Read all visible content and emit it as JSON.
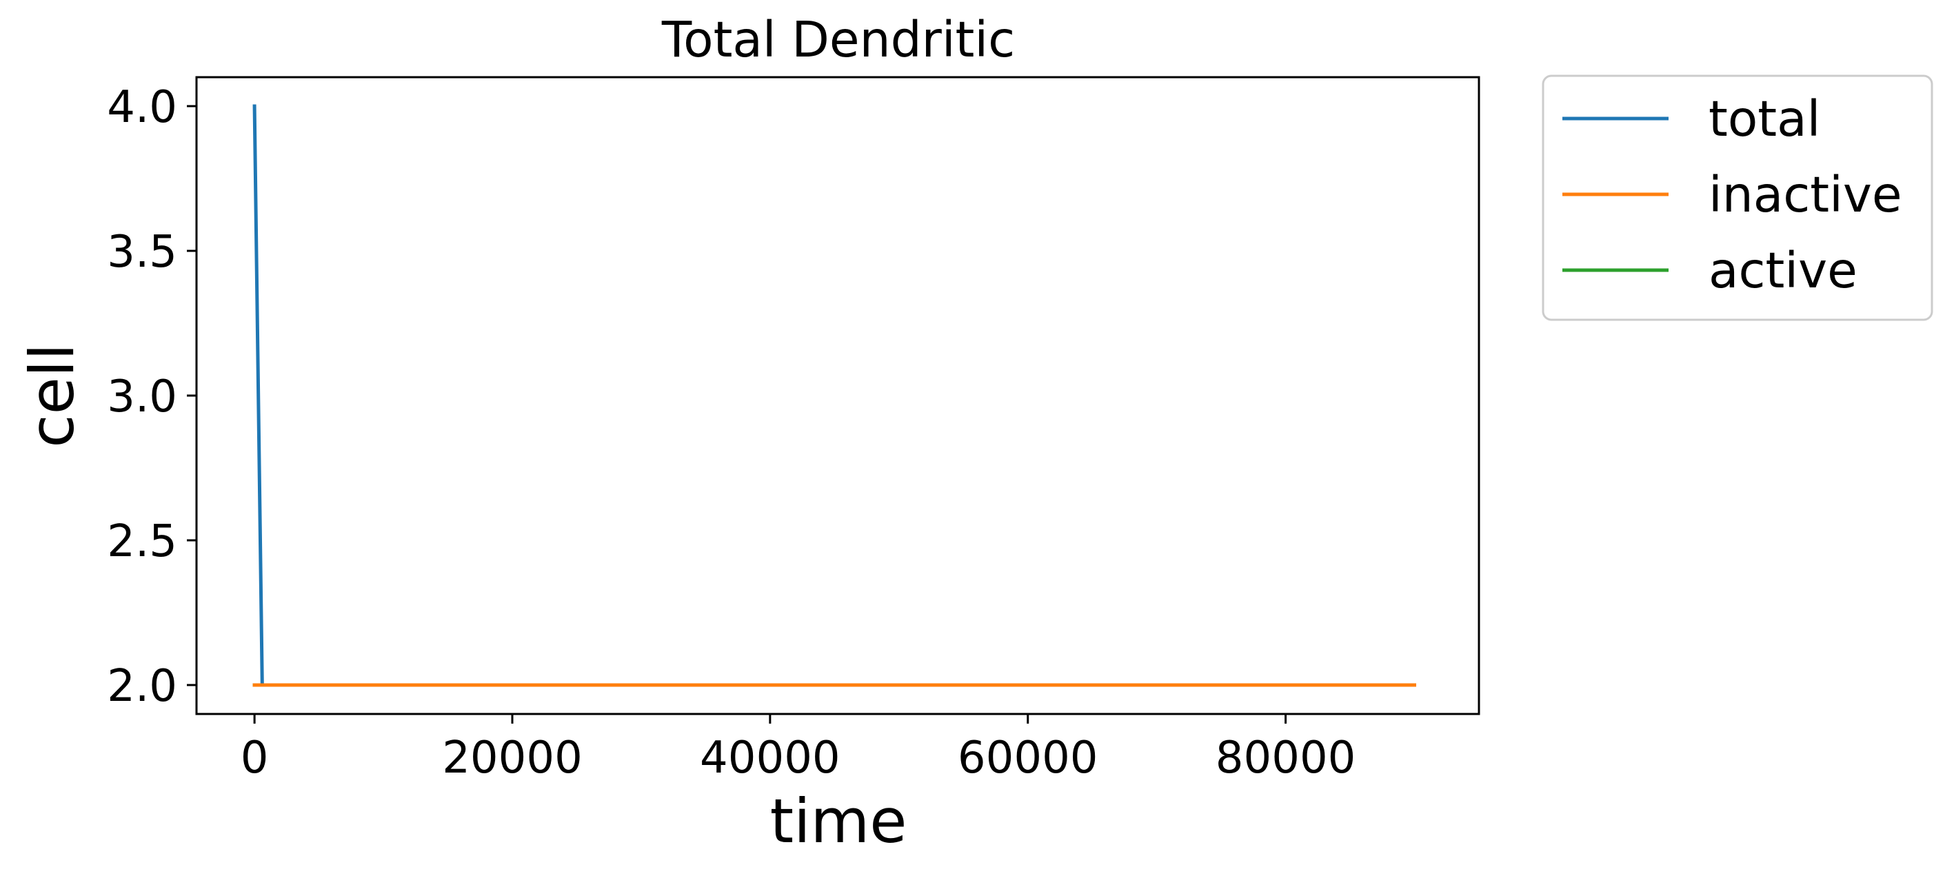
{
  "chart_data": {
    "type": "line",
    "title": "Total Dendritic",
    "xlabel": "time",
    "ylabel": "cell",
    "xlim": [
      -4500,
      95000
    ],
    "ylim": [
      1.9,
      4.1
    ],
    "xticks": [
      0,
      20000,
      40000,
      60000,
      80000
    ],
    "yticks": [
      2.0,
      2.5,
      3.0,
      3.5,
      4.0
    ],
    "xtick_labels": [
      "0",
      "20000",
      "40000",
      "60000",
      "80000"
    ],
    "ytick_labels": [
      "2.0",
      "2.5",
      "3.0",
      "3.5",
      "4.0"
    ],
    "grid": false,
    "legend_position": "outside-right-top",
    "series": [
      {
        "name": "total",
        "color": "#1f77b4",
        "x": [
          0,
          600,
          90000
        ],
        "y": [
          4.0,
          2.0,
          2.0
        ]
      },
      {
        "name": "inactive",
        "color": "#ff7f0e",
        "x": [
          0,
          90000
        ],
        "y": [
          2.0,
          2.0
        ]
      },
      {
        "name": "active",
        "color": "#2ca02c",
        "x": [
          0,
          90000
        ],
        "y": [
          2.0,
          2.0
        ]
      }
    ],
    "draw_order": [
      "total",
      "active",
      "inactive"
    ]
  }
}
